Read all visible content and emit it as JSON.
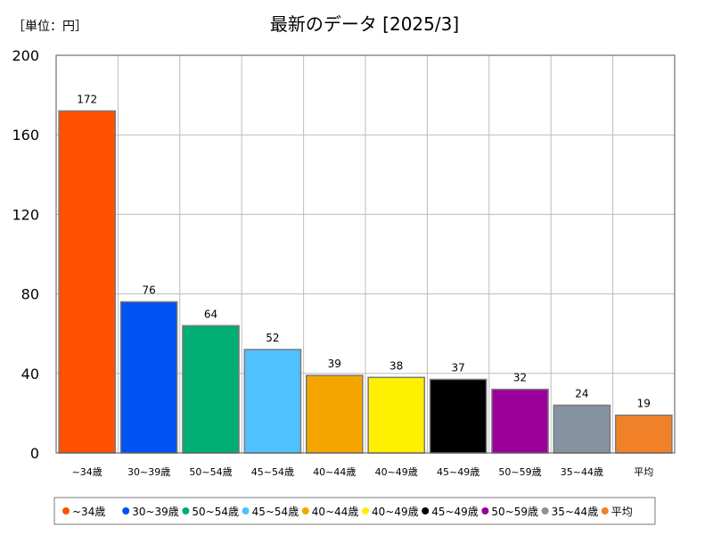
{
  "chart_data": {
    "type": "bar",
    "title": "最新のデータ [2025/3]",
    "unit_label": "［単位：円］",
    "xlabel": "",
    "ylabel": "",
    "ylim": [
      0,
      200
    ],
    "yticks": [
      0,
      40,
      80,
      120,
      160,
      200
    ],
    "grid": true,
    "legend_position": "bottom",
    "categories": [
      "~34歳",
      "30~39歳",
      "50~54歳",
      "45~54歳",
      "40~44歳",
      "40~49歳",
      "45~49歳",
      "50~59歳",
      "35~44歳",
      "平均"
    ],
    "values": [
      172,
      76,
      64,
      52,
      39,
      38,
      37,
      32,
      24,
      19
    ],
    "colors": [
      "#ff4f00",
      "#0052f2",
      "#00ad72",
      "#4fc1ff",
      "#f5a500",
      "#fff000",
      "#000000",
      "#9a0099",
      "#85929f",
      "#f08128"
    ]
  }
}
